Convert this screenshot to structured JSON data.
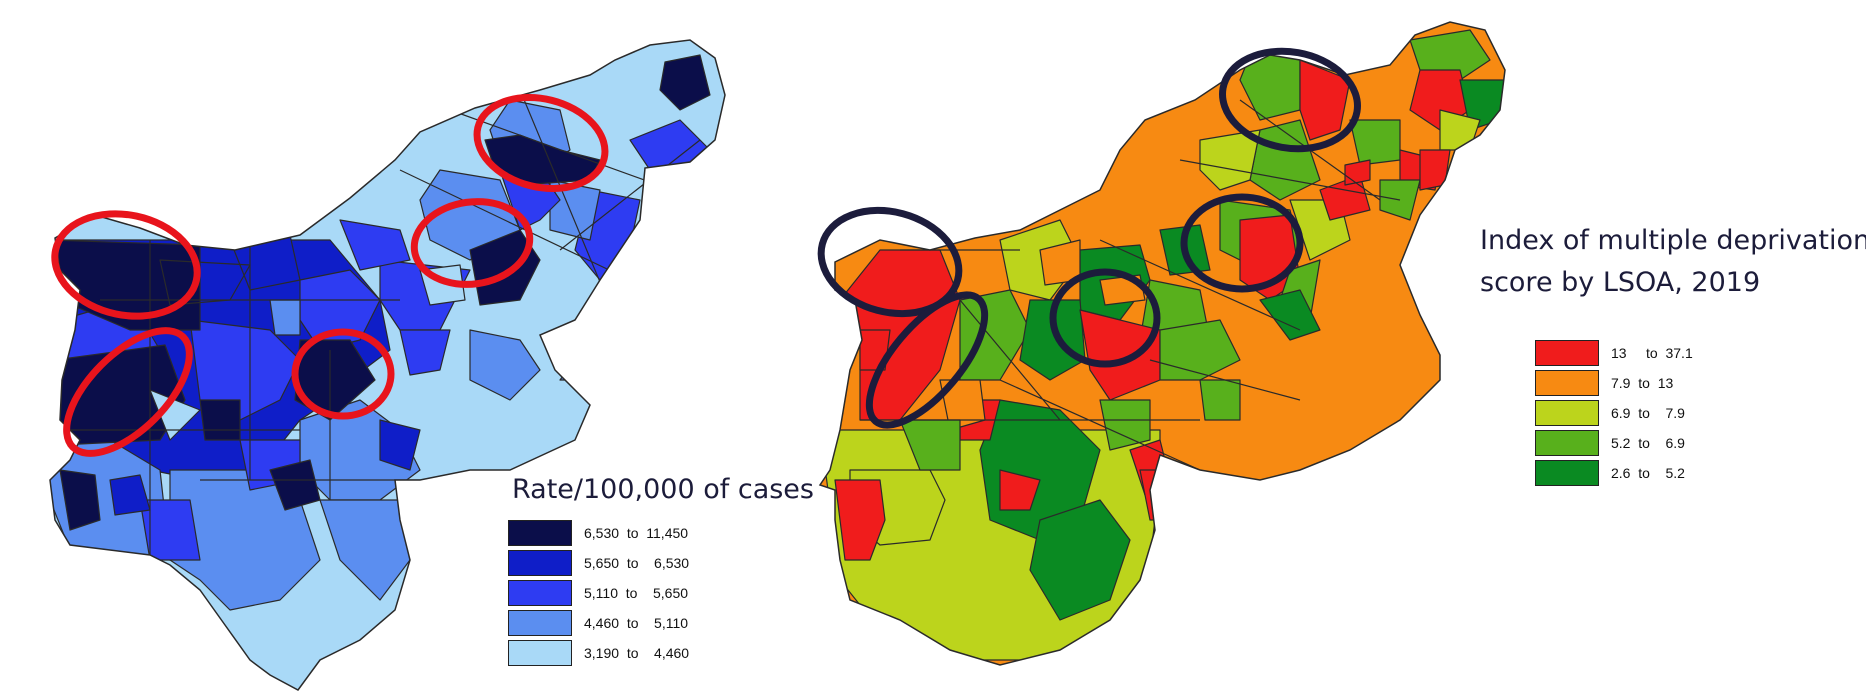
{
  "maps": [
    {
      "name": "case-rate",
      "legend_title": "Rate/100,000 of cases",
      "legend_items": [
        {
          "label": "6,530  to  11,450",
          "color": "#0b0e4a"
        },
        {
          "label": "5,650  to    6,530",
          "color": "#0f1ec8"
        },
        {
          "label": "5,110  to    5,650",
          "color": "#2e3cf2"
        },
        {
          "label": "4,460  to    5,110",
          "color": "#5b8ef0"
        },
        {
          "label": "3,190  to    4,460",
          "color": "#a9d9f7"
        }
      ],
      "highlight_color": "#e8141c"
    },
    {
      "name": "deprivation",
      "legend_title_line1": "Index of multiple deprivation",
      "legend_title_line2": "score by LSOA, 2019",
      "legend_items": [
        {
          "label": "13     to  37.1",
          "color": "#f01c1c"
        },
        {
          "label": "7.9  to  13",
          "color": "#f78a12"
        },
        {
          "label": "6.9  to    7.9",
          "color": "#bcd41c"
        },
        {
          "label": "5.2  to    6.9",
          "color": "#58b01c"
        },
        {
          "label": "2.6  to    5.2",
          "color": "#0a8a22"
        }
      ],
      "highlight_color": "#1c1c3c"
    }
  ]
}
